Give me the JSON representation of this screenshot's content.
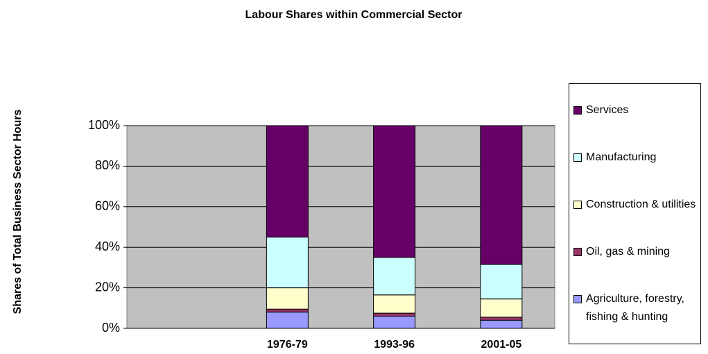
{
  "chart_data": {
    "type": "stacked_bar",
    "title": "Labour Shares within Commercial Sector",
    "y_label": "Shares of Total Business Sector Hours",
    "categories": [
      null,
      "1976-79",
      "1993-96",
      "2001-05"
    ],
    "series": [
      {
        "name": "Agriculture, forestry, fishing & hunting",
        "color": "#9999ff",
        "values": [
          null,
          8,
          6,
          4
        ]
      },
      {
        "name": "Oil, gas & mining",
        "color": "#993366",
        "values": [
          null,
          1.5,
          1.5,
          1.5
        ]
      },
      {
        "name": "Construction & utilities",
        "color": "#ffffcc",
        "values": [
          null,
          10.5,
          9,
          9
        ]
      },
      {
        "name": "Manufacturing",
        "color": "#ccffff",
        "values": [
          null,
          25,
          18.5,
          17
        ]
      },
      {
        "name": "Services",
        "color": "#660066",
        "values": [
          null,
          55,
          65,
          68.5
        ]
      }
    ],
    "ylim": [
      0,
      100
    ],
    "yticks": [
      {
        "value": 0,
        "label": "0%"
      },
      {
        "value": 20,
        "label": "20%"
      },
      {
        "value": 40,
        "label": "40%"
      },
      {
        "value": 60,
        "label": "60%"
      },
      {
        "value": 80,
        "label": "80%"
      },
      {
        "value": 100,
        "label": "100%"
      }
    ],
    "grid": true,
    "plot_background": "#c0c0c0",
    "legend": "right"
  }
}
